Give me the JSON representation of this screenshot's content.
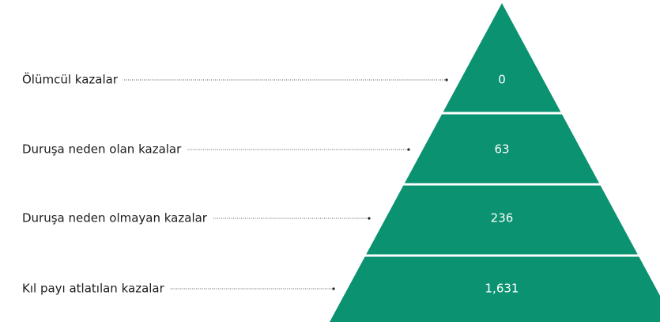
{
  "levels": [
    {
      "label": "Ölümcül kazalar",
      "value": "0"
    },
    {
      "label": "Duruşa neden olan kazalar",
      "value": "63"
    },
    {
      "label": "Duruşa neden olmayan kazalar",
      "value": "236"
    },
    {
      "label": "Kıl payı atlatılan kazalar",
      "value": "1,631"
    }
  ]
}
